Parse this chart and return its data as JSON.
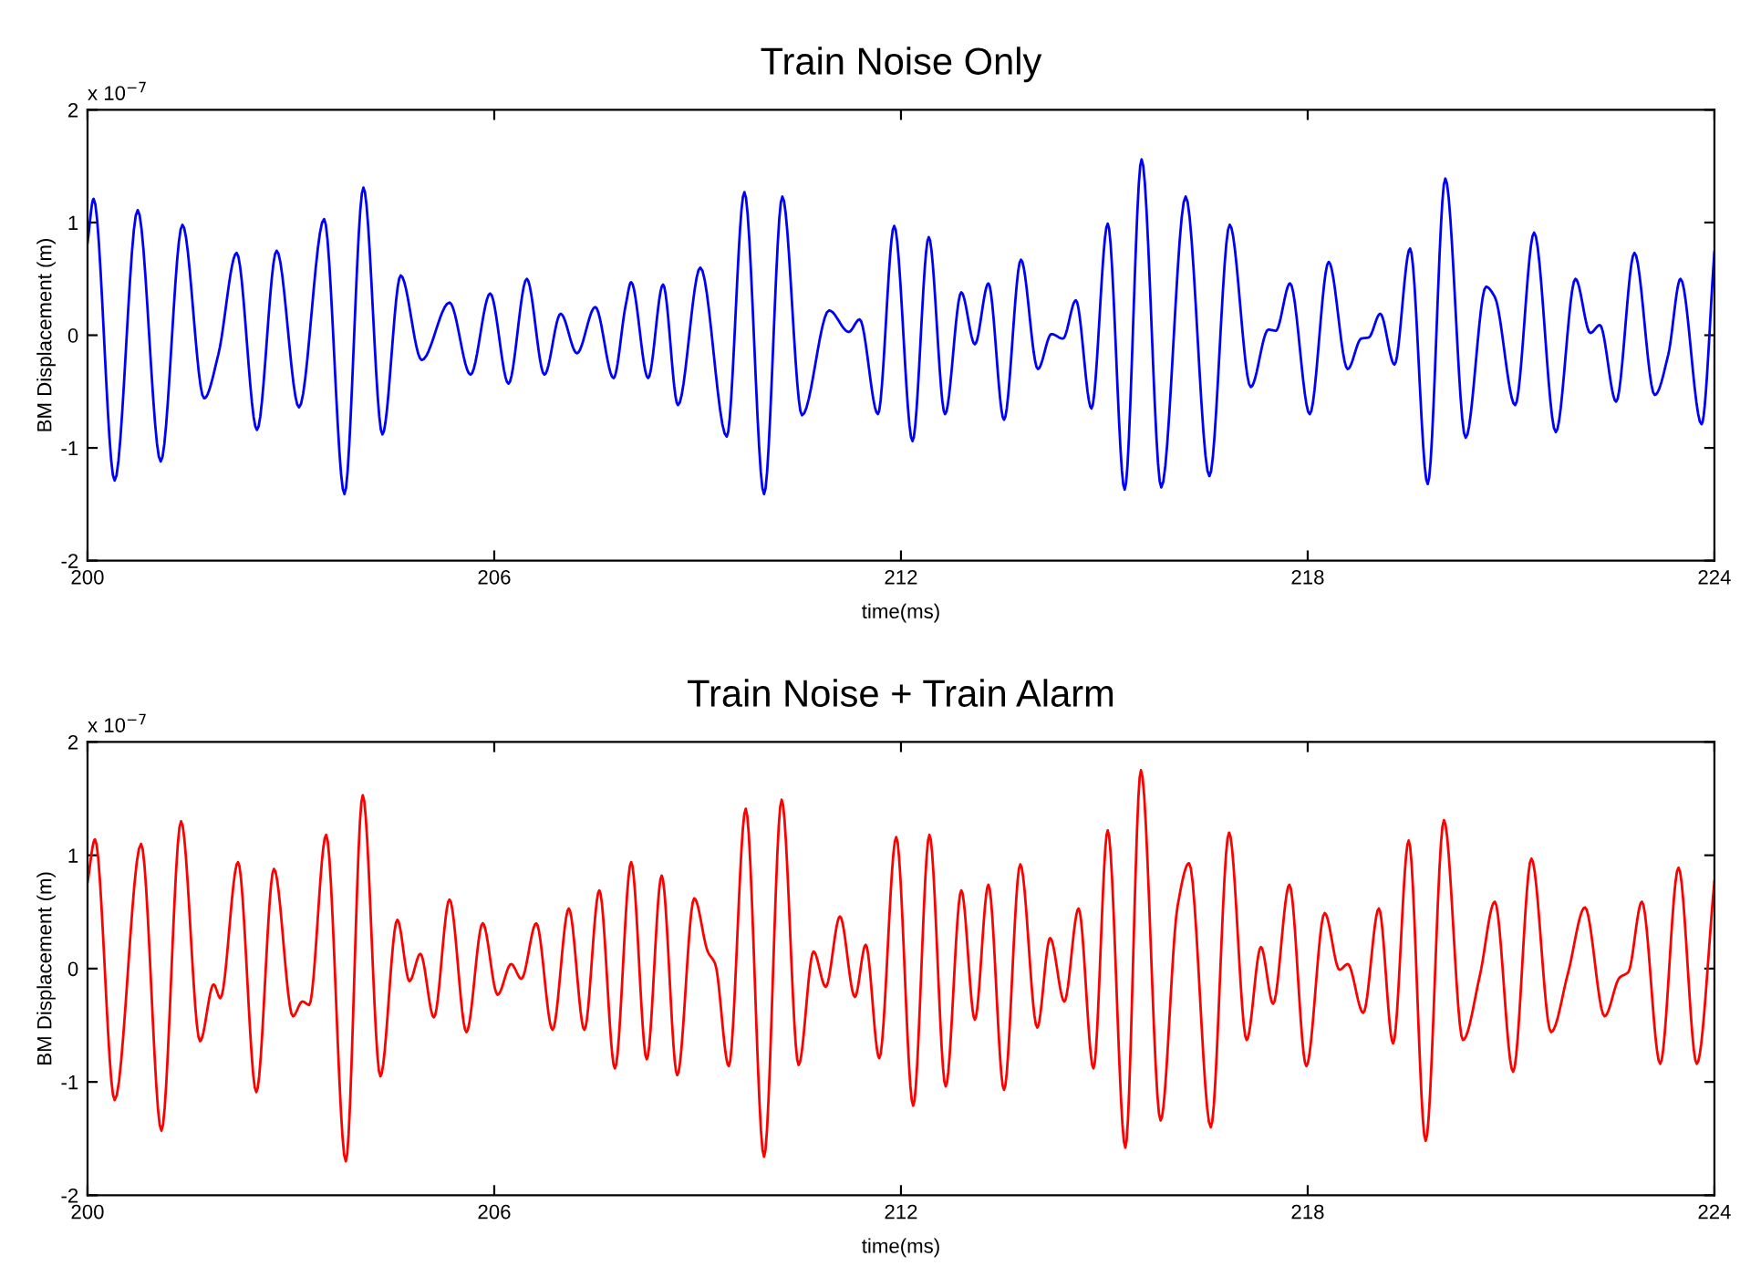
{
  "chart_data": [
    {
      "type": "line",
      "title": "Train Noise Only",
      "xlabel": "time(ms)",
      "ylabel": "BM Displacement (m)",
      "annotations": [
        "x 10$^{−7}$"
      ],
      "xlim": [
        200,
        224
      ],
      "ylim": [
        -2,
        2
      ],
      "xticks": [
        200,
        206,
        212,
        218,
        224
      ],
      "yticks": [
        -2,
        -1,
        0,
        1,
        2
      ],
      "series": [
        {
          "color": "#0000ff",
          "x": [
            200.0,
            200.09,
            200.4,
            200.74,
            201.08,
            201.4,
            201.72,
            201.93,
            202.2,
            202.5,
            202.79,
            203.12,
            203.49,
            203.79,
            204.07,
            204.35,
            204.62,
            204.93,
            205.34,
            205.65,
            205.94,
            206.21,
            206.48,
            206.74,
            206.98,
            207.22,
            207.49,
            207.76,
            207.94,
            208.02,
            208.27,
            208.49,
            208.71,
            209.04,
            209.43,
            209.69,
            209.98,
            210.25,
            210.54,
            210.94,
            211.23,
            211.39,
            211.66,
            211.9,
            212.17,
            212.41,
            212.65,
            212.89,
            213.09,
            213.29,
            213.52,
            213.77,
            214.02,
            214.22,
            214.39,
            214.58,
            214.81,
            215.05,
            215.3,
            215.55,
            215.84,
            216.2,
            216.55,
            216.85,
            217.16,
            217.42,
            217.53,
            217.74,
            218.03,
            218.31,
            218.59,
            218.79,
            218.9,
            219.07,
            219.28,
            219.51,
            219.77,
            220.03,
            220.33,
            220.63,
            220.76,
            221.06,
            221.34,
            221.66,
            221.95,
            222.17,
            222.31,
            222.55,
            222.82,
            223.12,
            223.32,
            223.5,
            223.81,
            224.0
          ],
          "values": [
            0.82,
            1.21,
            -1.29,
            1.11,
            -1.12,
            0.98,
            -0.56,
            -0.17,
            0.73,
            -0.84,
            0.75,
            -0.64,
            1.03,
            -1.41,
            1.31,
            -0.88,
            0.53,
            -0.22,
            0.29,
            -0.35,
            0.37,
            -0.43,
            0.5,
            -0.35,
            0.19,
            -0.16,
            0.25,
            -0.38,
            0.27,
            0.47,
            -0.38,
            0.45,
            -0.62,
            0.6,
            -0.9,
            1.27,
            -1.41,
            1.23,
            -0.71,
            0.22,
            0.03,
            0.14,
            -0.7,
            0.97,
            -0.94,
            0.87,
            -0.7,
            0.38,
            -0.08,
            0.46,
            -0.75,
            0.67,
            -0.3,
            0.01,
            -0.03,
            0.31,
            -0.65,
            0.99,
            -1.37,
            1.56,
            -1.35,
            1.23,
            -1.25,
            0.98,
            -0.46,
            0.05,
            0.04,
            0.46,
            -0.7,
            0.65,
            -0.3,
            -0.03,
            -0.02,
            0.19,
            -0.26,
            0.77,
            -1.32,
            1.39,
            -0.91,
            0.43,
            0.34,
            -0.62,
            0.91,
            -0.86,
            0.5,
            0.02,
            0.09,
            -0.59,
            0.73,
            -0.53,
            -0.17,
            0.5,
            -0.79,
            0.74
          ]
        }
      ]
    },
    {
      "type": "line",
      "title": "Train Noise + Train Alarm",
      "xlabel": "time(ms)",
      "ylabel": "BM Displacement (m)",
      "annotations": [
        "x 10$^{−7}$"
      ],
      "xlim": [
        200,
        224
      ],
      "ylim": [
        -2,
        2
      ],
      "xticks": [
        200,
        206,
        212,
        218,
        224
      ],
      "yticks": [
        -2,
        -1,
        0,
        1,
        2
      ],
      "series": [
        {
          "color": "#ff0000",
          "x": [
            200.0,
            200.11,
            200.4,
            200.79,
            201.09,
            201.38,
            201.66,
            201.86,
            201.96,
            202.22,
            202.49,
            202.75,
            203.03,
            203.17,
            203.27,
            203.52,
            203.81,
            204.06,
            204.32,
            204.57,
            204.75,
            204.91,
            205.11,
            205.34,
            205.59,
            205.83,
            206.05,
            206.25,
            206.4,
            206.62,
            206.86,
            207.1,
            207.33,
            207.55,
            207.78,
            208.02,
            208.25,
            208.47,
            208.7,
            208.95,
            209.15,
            209.26,
            209.46,
            209.71,
            209.98,
            210.24,
            210.49,
            210.71,
            210.89,
            211.1,
            211.32,
            211.48,
            211.68,
            211.93,
            212.18,
            212.42,
            212.66,
            212.89,
            213.09,
            213.29,
            213.52,
            213.76,
            214.01,
            214.2,
            214.41,
            214.62,
            214.84,
            215.05,
            215.31,
            215.54,
            215.83,
            216.08,
            216.25,
            216.57,
            216.84,
            217.1,
            217.31,
            217.49,
            217.73,
            217.98,
            218.25,
            218.47,
            218.59,
            218.82,
            219.05,
            219.26,
            219.49,
            219.74,
            220.01,
            220.29,
            220.54,
            220.76,
            221.03,
            221.3,
            221.59,
            221.84,
            222.09,
            222.38,
            222.6,
            222.73,
            222.93,
            223.2,
            223.47,
            223.74,
            224.0
          ],
          "values": [
            0.76,
            1.14,
            -1.16,
            1.1,
            -1.43,
            1.3,
            -0.64,
            -0.14,
            -0.26,
            0.94,
            -1.09,
            0.88,
            -0.42,
            -0.29,
            -0.32,
            1.18,
            -1.7,
            1.53,
            -0.95,
            0.43,
            -0.11,
            0.13,
            -0.43,
            0.61,
            -0.56,
            0.4,
            -0.23,
            0.04,
            -0.09,
            0.4,
            -0.54,
            0.53,
            -0.54,
            0.69,
            -0.88,
            0.94,
            -0.8,
            0.82,
            -0.94,
            0.62,
            0.15,
            0.04,
            -0.86,
            1.41,
            -1.66,
            1.49,
            -0.85,
            0.15,
            -0.16,
            0.46,
            -0.25,
            0.21,
            -0.79,
            1.16,
            -1.21,
            1.18,
            -1.04,
            0.69,
            -0.45,
            0.74,
            -1.07,
            0.92,
            -0.52,
            0.27,
            -0.29,
            0.53,
            -0.88,
            1.22,
            -1.58,
            1.75,
            -1.34,
            0.55,
            0.93,
            -1.4,
            1.2,
            -0.63,
            0.19,
            -0.31,
            0.74,
            -0.86,
            0.49,
            -0.01,
            0.04,
            -0.39,
            0.53,
            -0.66,
            1.13,
            -1.52,
            1.31,
            -0.63,
            -0.06,
            0.59,
            -0.91,
            0.97,
            -0.56,
            -0.04,
            0.54,
            -0.42,
            -0.08,
            -0.03,
            0.59,
            -0.84,
            0.89,
            -0.84,
            0.77
          ]
        }
      ]
    }
  ]
}
